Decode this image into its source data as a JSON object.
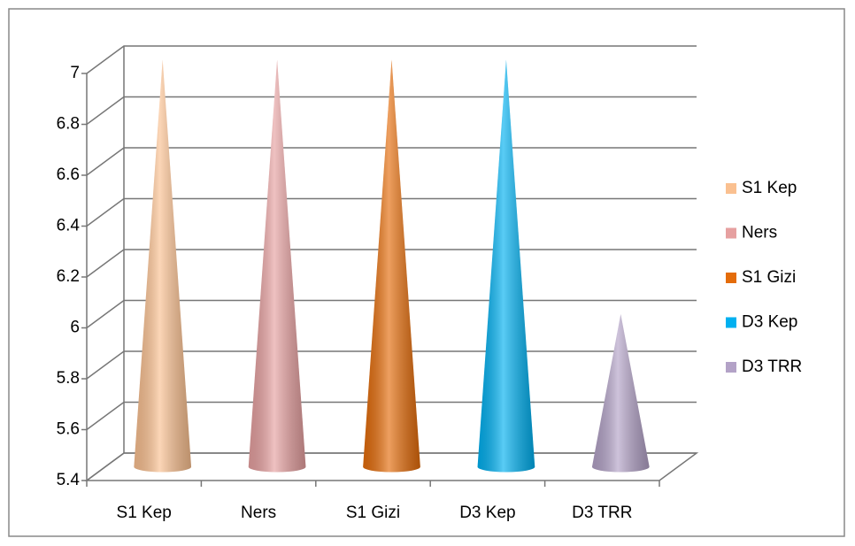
{
  "chart_data": {
    "type": "cone3d",
    "categories": [
      "S1 Kep",
      "Ners",
      "S1 Gizi",
      "D3 Kep",
      "D3 TRR"
    ],
    "series": [
      {
        "name": "S1 Kep",
        "color": "#fac090",
        "values": [
          7,
          null,
          null,
          null,
          null
        ]
      },
      {
        "name": "Ners",
        "color": "#e6a0a0",
        "values": [
          null,
          7,
          null,
          null,
          null
        ]
      },
      {
        "name": "S1 Gizi",
        "color": "#e46c0a",
        "values": [
          null,
          null,
          7,
          null,
          null
        ]
      },
      {
        "name": "D3 Kep",
        "color": "#00b0f0",
        "values": [
          null,
          null,
          null,
          7,
          null
        ]
      },
      {
        "name": "D3 TRR",
        "color": "#b3a2c7",
        "values": [
          null,
          null,
          null,
          null,
          6
        ]
      }
    ],
    "ylim": [
      5.4,
      7
    ],
    "yticks": [
      5.4,
      5.6,
      5.8,
      6,
      6.2,
      6.4,
      6.6,
      6.8,
      7
    ],
    "grid": true,
    "legend": "right"
  }
}
